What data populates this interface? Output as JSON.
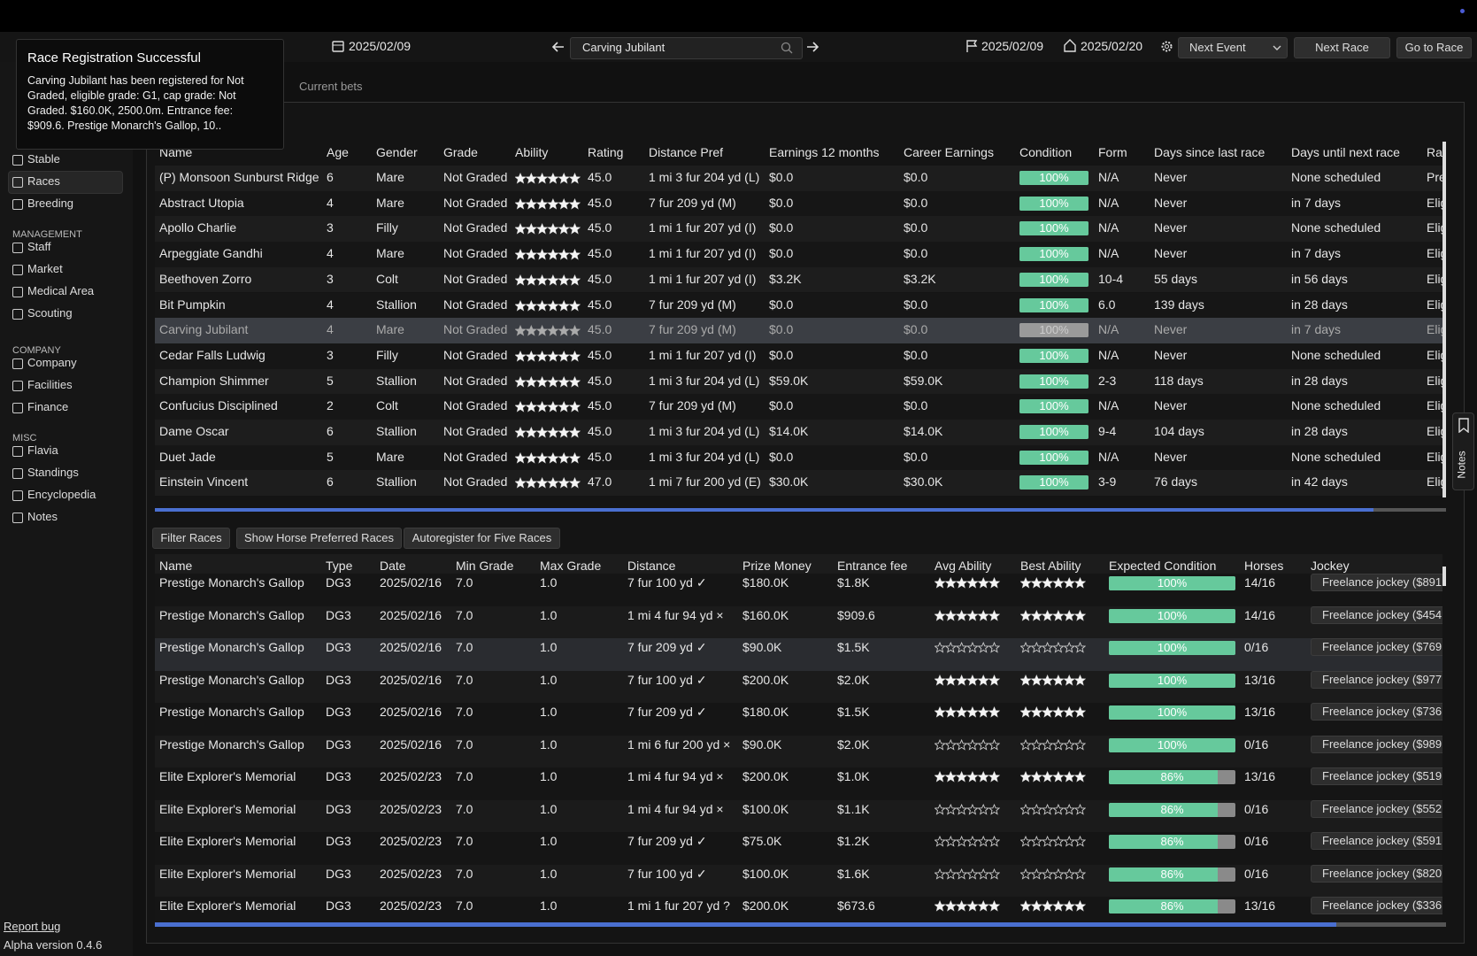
{
  "header": {
    "date": "2025/02/09",
    "search": "Carving Jubilant",
    "race_date": "2025/02/09",
    "next_date": "2025/02/20",
    "buttons": [
      "Next Event",
      "Next Race",
      "Go to Race"
    ]
  },
  "toast": {
    "title": "Race Registration Successful",
    "body": "Carving Jubilant has been registered for Not Graded, eligible grade: G1, cap grade: Not Graded. $160.0K, 2500.0m. Entrance fee: $909.6. Prestige Monarch's Gallop, 10.."
  },
  "sidebar": {
    "groups": [
      {
        "items": [
          "Stable",
          "Races",
          "Breeding"
        ]
      },
      {
        "title": "MANAGEMENT",
        "items": [
          "Staff",
          "Market",
          "Medical Area",
          "Scouting"
        ]
      },
      {
        "title": "COMPANY",
        "items": [
          "Company",
          "Facilities",
          "Finance"
        ]
      },
      {
        "title": "MISC",
        "items": [
          "Flavia",
          "Standings",
          "Encyclopedia",
          "Notes"
        ]
      }
    ],
    "report_bug": "Report bug",
    "version": "Alpha version 0.4.6"
  },
  "tabs": [
    "Current bets"
  ],
  "horses": {
    "columns": [
      "Name",
      "Age",
      "Gender",
      "Grade",
      "Ability",
      "Rating",
      "Distance Pref",
      "Earnings 12 months",
      "Career Earnings",
      "Condition",
      "Form",
      "Days since last race",
      "Days until next race",
      "Ra"
    ],
    "selected": 6,
    "rows": [
      [
        "(P) Monsoon Sunburst Ridge",
        6,
        "Mare",
        "Not Graded",
        2,
        "45.0",
        "1 mi 3 fur 204 yd (L)",
        "$0.0",
        "$0.0",
        {
          "value": 100,
          "label": "100%"
        },
        "N/A",
        "Never",
        "None scheduled",
        "Pre"
      ],
      [
        "Abstract Utopia",
        4,
        "Mare",
        "Not Graded",
        2,
        "45.0",
        "7 fur 209 yd (M)",
        "$0.0",
        "$0.0",
        {
          "value": 100,
          "label": "100%"
        },
        "N/A",
        "Never",
        "in 7 days",
        "Elig"
      ],
      [
        "Apollo Charlie",
        3,
        "Filly",
        "Not Graded",
        2,
        "45.0",
        "1 mi 1 fur 207 yd (I)",
        "$0.0",
        "$0.0",
        {
          "value": 100,
          "label": "100%"
        },
        "N/A",
        "Never",
        "None scheduled",
        "Elig"
      ],
      [
        "Arpeggiate Gandhi",
        4,
        "Mare",
        "Not Graded",
        2.5,
        "45.0",
        "1 mi 1 fur 207 yd (I)",
        "$0.0",
        "$0.0",
        {
          "value": 100,
          "label": "100%"
        },
        "N/A",
        "Never",
        "in 7 days",
        "Elig"
      ],
      [
        "Beethoven Zorro",
        3,
        "Colt",
        "Not Graded",
        2,
        "45.0",
        "1 mi 1 fur 207 yd (I)",
        "$3.2K",
        "$3.2K",
        {
          "value": 100,
          "label": "100%"
        },
        "10-4",
        "55 days",
        "in 56 days",
        "Elig"
      ],
      [
        "Bit Pumpkin",
        4,
        "Stallion",
        "Not Graded",
        2,
        "45.0",
        "7 fur 209 yd (M)",
        "$0.0",
        "$0.0",
        {
          "value": 100,
          "label": "100%"
        },
        "6.0",
        "139 days",
        "in 28 days",
        "Elig"
      ],
      [
        "Carving Jubilant",
        4,
        "Mare",
        "Not Graded",
        2,
        "45.0",
        "7 fur 209 yd (M)",
        "$0.0",
        "$0.0",
        {
          "value": 100,
          "label": "100%"
        },
        "N/A",
        "Never",
        "in 7 days",
        "Elig"
      ],
      [
        "Cedar Falls Ludwig",
        3,
        "Filly",
        "Not Graded",
        2,
        "45.0",
        "1 mi 1 fur 207 yd (I)",
        "$0.0",
        "$0.0",
        {
          "value": 100,
          "label": "100%"
        },
        "N/A",
        "Never",
        "None scheduled",
        "Elig"
      ],
      [
        "Champion Shimmer",
        5,
        "Stallion",
        "Not Graded",
        2,
        "45.0",
        "1 mi 3 fur 204 yd (L)",
        "$59.0K",
        "$59.0K",
        {
          "value": 100,
          "label": "100%"
        },
        "2-3",
        "118 days",
        "in 28 days",
        "Elig"
      ],
      [
        "Confucius Disciplined",
        2,
        "Colt",
        "Not Graded",
        1,
        "45.0",
        "7 fur 209 yd (M)",
        "$0.0",
        "$0.0",
        {
          "value": 100,
          "label": "100%"
        },
        "N/A",
        "Never",
        "None scheduled",
        "Elig"
      ],
      [
        "Dame Oscar",
        6,
        "Stallion",
        "Not Graded",
        2,
        "45.0",
        "1 mi 3 fur 204 yd (L)",
        "$14.0K",
        "$14.0K",
        {
          "value": 100,
          "label": "100%"
        },
        "9-4",
        "104 days",
        "in 28 days",
        "Elig"
      ],
      [
        "Duet Jade",
        5,
        "Mare",
        "Not Graded",
        2.5,
        "45.0",
        "1 mi 3 fur 204 yd (L)",
        "$0.0",
        "$0.0",
        {
          "value": 100,
          "label": "100%"
        },
        "N/A",
        "Never",
        "None scheduled",
        "Elig"
      ],
      [
        "Einstein Vincent",
        6,
        "Stallion",
        "Not Graded",
        3,
        "47.0",
        "1 mi 7 fur 200 yd (E)",
        "$30.0K",
        "$30.0K",
        {
          "value": 100,
          "label": "100%"
        },
        "3-9",
        "76 days",
        "in 42 days",
        "Elig"
      ]
    ]
  },
  "race_buttons": [
    "Filter Races",
    "Show Horse Preferred Races",
    "Autoregister for Five Races"
  ],
  "races": {
    "columns": [
      "Name",
      "Type",
      "Date",
      "Min Grade",
      "Max Grade",
      "Distance",
      "Prize Money",
      "Entrance fee",
      "Avg Ability",
      "Best Ability",
      "Expected Condition",
      "Horses",
      "Jockey"
    ],
    "rows": [
      [
        "Prestige Monarch's Gallop",
        "DG3",
        "2025/02/16",
        "7.0",
        "1.0",
        "7 fur 100 yd ✓",
        "$180.0K",
        "$1.8K",
        2,
        2.5,
        {
          "value": 100,
          "label": "100%"
        },
        "14/16",
        "Freelance jockey ($891"
      ],
      [
        "Prestige Monarch's Gallop",
        "DG3",
        "2025/02/16",
        "7.0",
        "1.0",
        "1 mi 4 fur 94 yd ×",
        "$160.0K",
        "$909.6",
        2,
        2,
        {
          "value": 100,
          "label": "100%"
        },
        "14/16",
        "Freelance jockey ($454"
      ],
      [
        "Prestige Monarch's Gallop",
        "DG3",
        "2025/02/16",
        "7.0",
        "1.0",
        "7 fur 209 yd ✓",
        "$90.0K",
        "$1.5K",
        0,
        0,
        {
          "value": 100,
          "label": "100%"
        },
        "0/16",
        "Freelance jockey ($769"
      ],
      [
        "Prestige Monarch's Gallop",
        "DG3",
        "2025/02/16",
        "7.0",
        "1.0",
        "7 fur 100 yd ✓",
        "$200.0K",
        "$2.0K",
        3.5,
        4,
        {
          "value": 100,
          "label": "100%"
        },
        "13/16",
        "Freelance jockey ($977"
      ],
      [
        "Prestige Monarch's Gallop",
        "DG3",
        "2025/02/16",
        "7.0",
        "1.0",
        "7 fur 209 yd ✓",
        "$180.0K",
        "$1.5K",
        2,
        3,
        {
          "value": 100,
          "label": "100%"
        },
        "13/16",
        "Freelance jockey ($736"
      ],
      [
        "Prestige Monarch's Gallop",
        "DG3",
        "2025/02/16",
        "7.0",
        "1.0",
        "1 mi 6 fur 200 yd ×",
        "$90.0K",
        "$2.0K",
        0,
        0,
        {
          "value": 100,
          "label": "100%"
        },
        "0/16",
        "Freelance jockey ($989"
      ],
      [
        "Elite Explorer's Memorial",
        "DG3",
        "2025/02/23",
        "7.0",
        "1.0",
        "1 mi 4 fur 94 yd ×",
        "$200.0K",
        "$1.0K",
        2.5,
        2.5,
        {
          "value": 86,
          "label": "86%"
        },
        "13/16",
        "Freelance jockey ($519"
      ],
      [
        "Elite Explorer's Memorial",
        "DG3",
        "2025/02/23",
        "7.0",
        "1.0",
        "1 mi 4 fur 94 yd ×",
        "$100.0K",
        "$1.1K",
        0,
        0,
        {
          "value": 86,
          "label": "86%"
        },
        "0/16",
        "Freelance jockey ($552"
      ],
      [
        "Elite Explorer's Memorial",
        "DG3",
        "2025/02/23",
        "7.0",
        "1.0",
        "7 fur 209 yd ✓",
        "$75.0K",
        "$1.2K",
        0,
        0,
        {
          "value": 86,
          "label": "86%"
        },
        "0/16",
        "Freelance jockey ($591"
      ],
      [
        "Elite Explorer's Memorial",
        "DG3",
        "2025/02/23",
        "7.0",
        "1.0",
        "7 fur 100 yd ✓",
        "$100.0K",
        "$1.6K",
        0,
        0,
        {
          "value": 86,
          "label": "86%"
        },
        "0/16",
        "Freelance jockey ($820"
      ],
      [
        "Elite Explorer's Memorial",
        "DG3",
        "2025/02/23",
        "7.0",
        "1.0",
        "1 mi 1 fur 207 yd ?",
        "$200.0K",
        "$673.6",
        2,
        2.5,
        {
          "value": 86,
          "label": "86%"
        },
        "13/16",
        "Freelance jockey ($336"
      ]
    ]
  },
  "side_tab": "Notes"
}
